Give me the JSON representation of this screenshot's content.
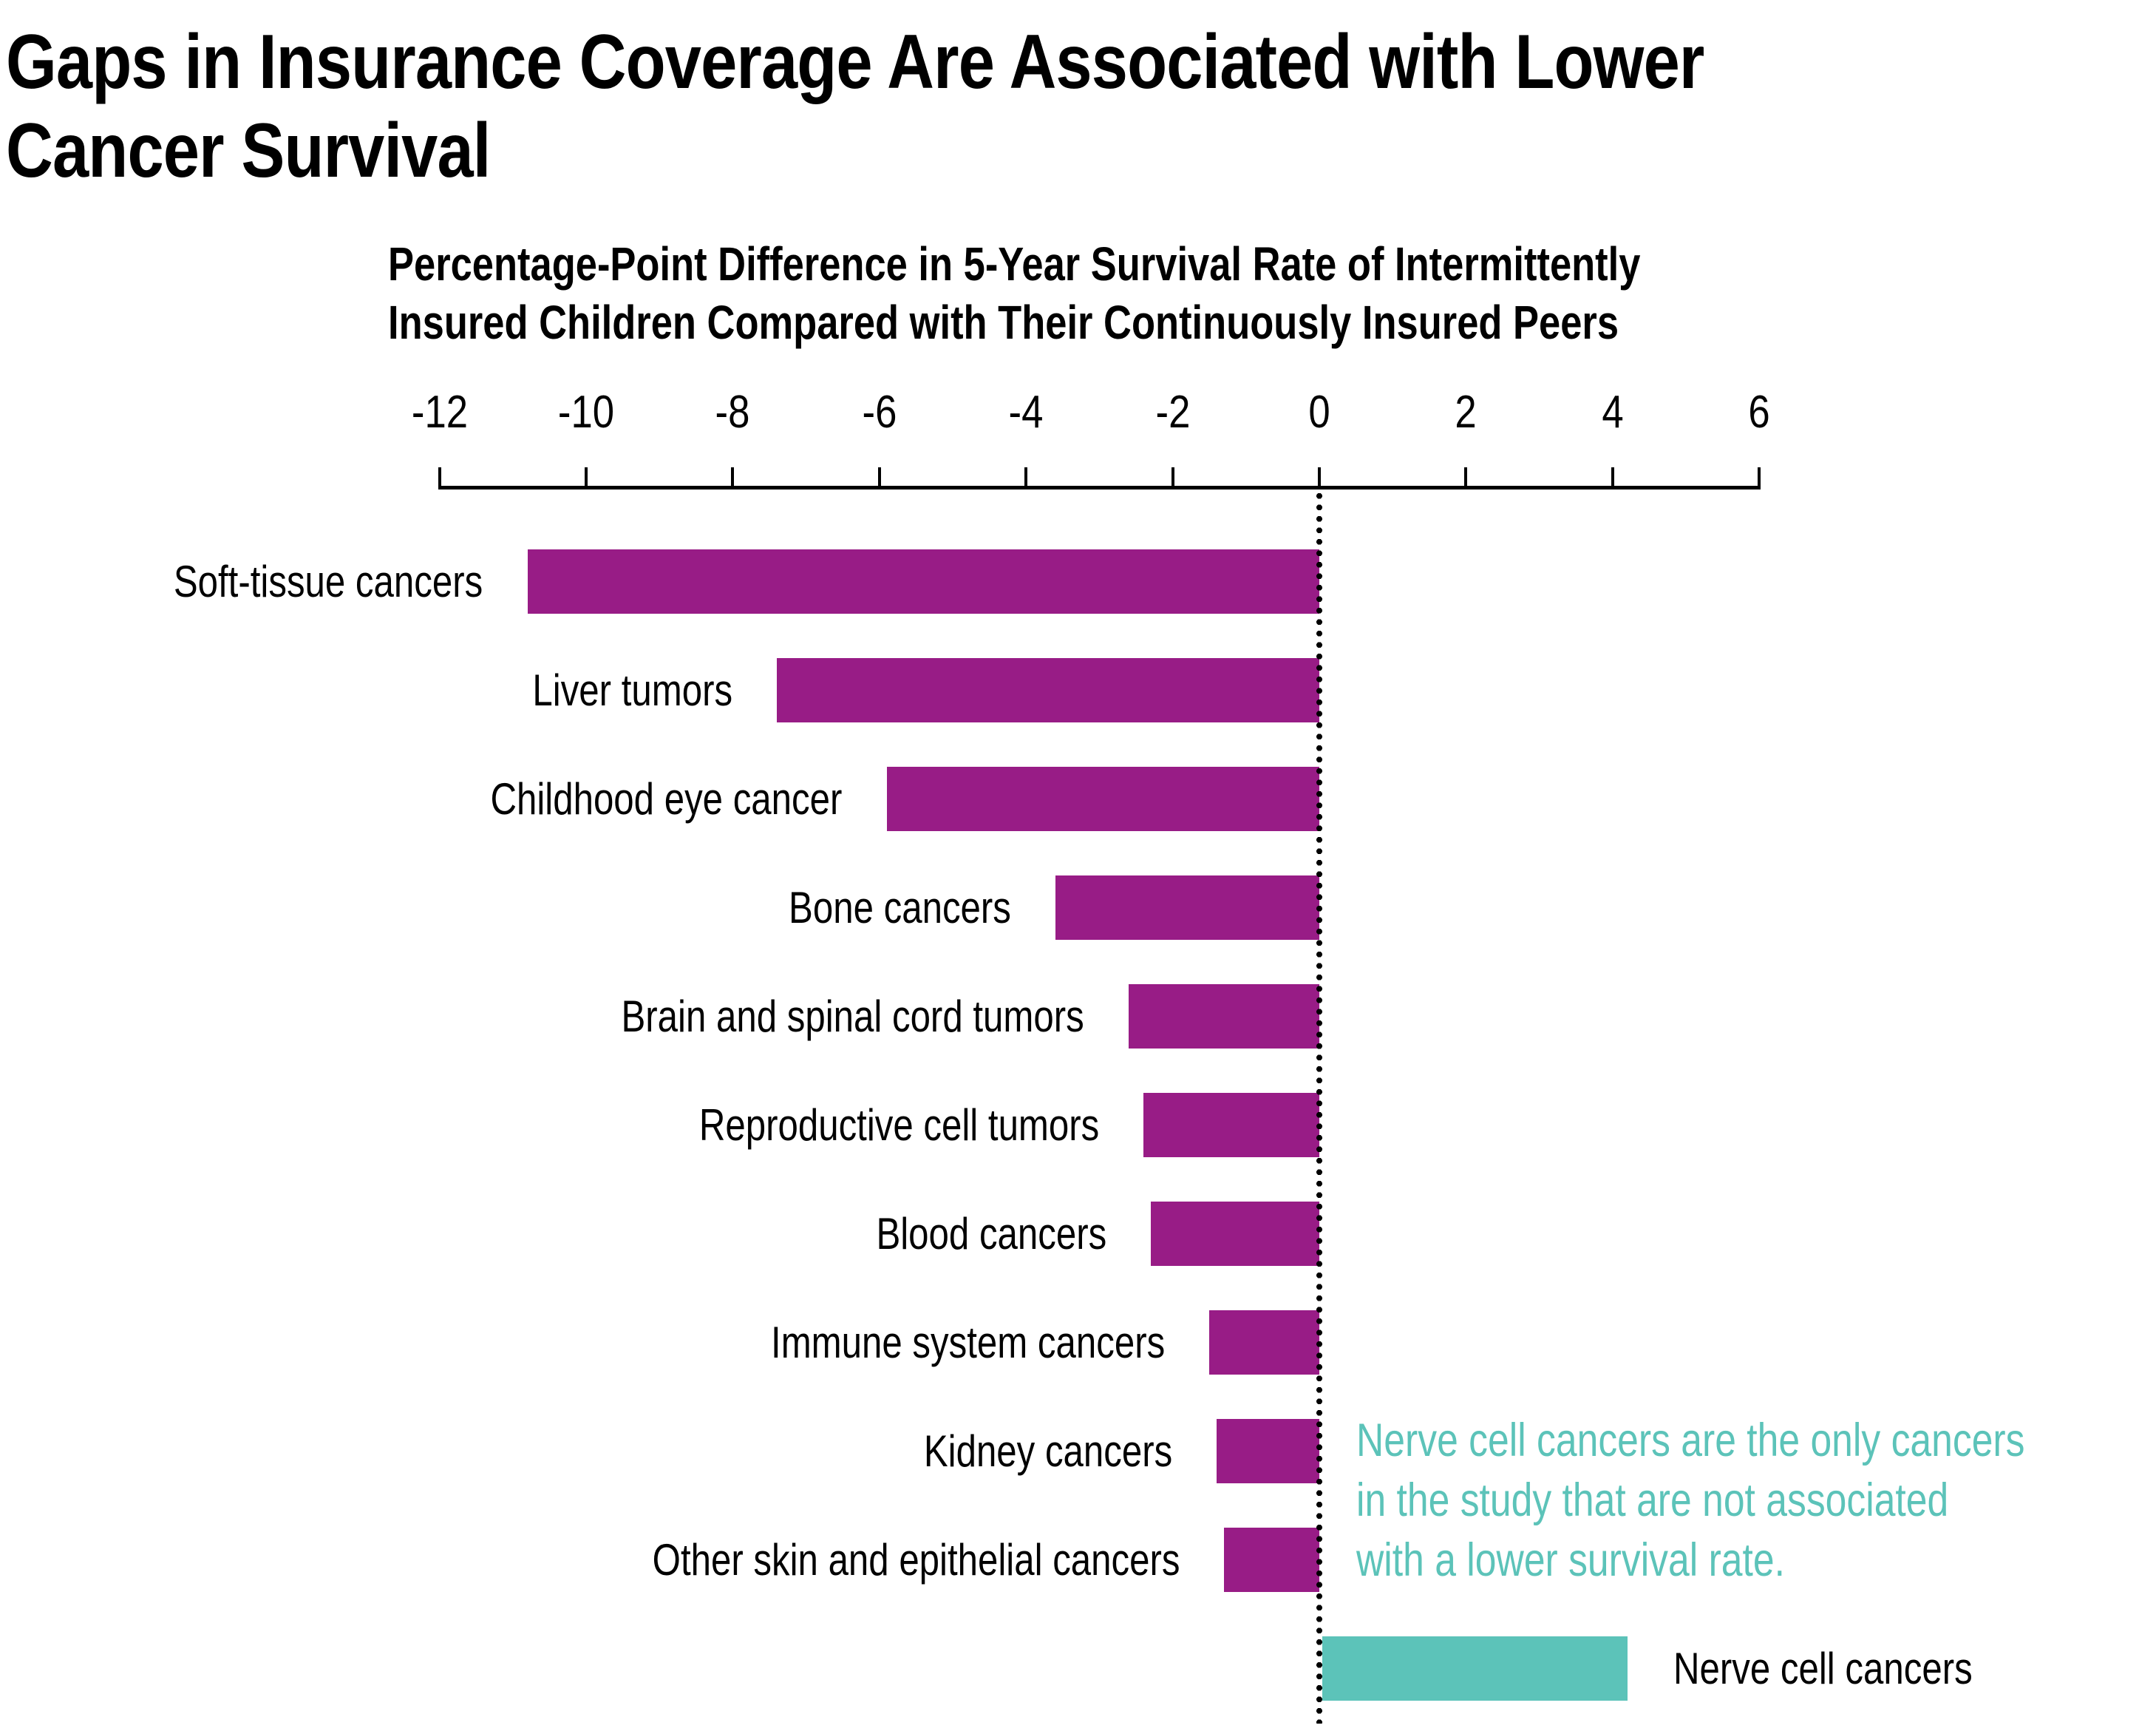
{
  "header": {
    "title_line1": "Gaps in Insurance Coverage Are Associated with Lower",
    "title_line2": "Cancer Survival",
    "subtitle_line1": "Percentage-Point Difference in 5-Year Survival Rate of Intermittently",
    "subtitle_line2": "Insured Children Compared with Their Continuously Insured Peers"
  },
  "annotation": {
    "line1": "Nerve cell cancers are the only cancers",
    "line2": "in the study that are not associated",
    "line3": "with a lower survival rate.",
    "color": "#5CC3B9"
  },
  "colors": {
    "bar_negative": "#981C86",
    "bar_positive": "#5CC3B9",
    "axis": "#000000",
    "text": "#000000"
  },
  "chart_data": {
    "type": "bar",
    "orientation": "horizontal",
    "title": "Gaps in Insurance Coverage Are Associated with Lower Cancer Survival",
    "axis_title": "Percentage-Point Difference in 5-Year Survival Rate of Intermittently Insured Children Compared with Their Continuously Insured Peers",
    "categories": [
      "Soft-tissue cancers",
      "Liver tumors",
      "Childhood eye cancer",
      "Bone cancers",
      "Brain and spinal cord tumors",
      "Reproductive cell tumors",
      "Blood cancers",
      "Immune system cancers",
      "Kidney cancers",
      "Other skin and epithelial cancers",
      "Nerve cell cancers"
    ],
    "values": [
      -10.8,
      -7.4,
      -5.9,
      -3.6,
      -2.6,
      -2.4,
      -2.3,
      -1.5,
      -1.4,
      -1.3,
      4.2
    ],
    "bar_colors": [
      "#981C86",
      "#981C86",
      "#981C86",
      "#981C86",
      "#981C86",
      "#981C86",
      "#981C86",
      "#981C86",
      "#981C86",
      "#981C86",
      "#5CC3B9"
    ],
    "x_ticks": [
      -12,
      -10,
      -8,
      -6,
      -4,
      -2,
      0,
      2,
      4,
      6
    ],
    "xlim": [
      -12,
      6
    ],
    "zero_line": "dotted",
    "grid": false,
    "legend": false,
    "annotation_text": "Nerve cell cancers are the only cancers in the study that are not associated with a lower survival rate."
  }
}
